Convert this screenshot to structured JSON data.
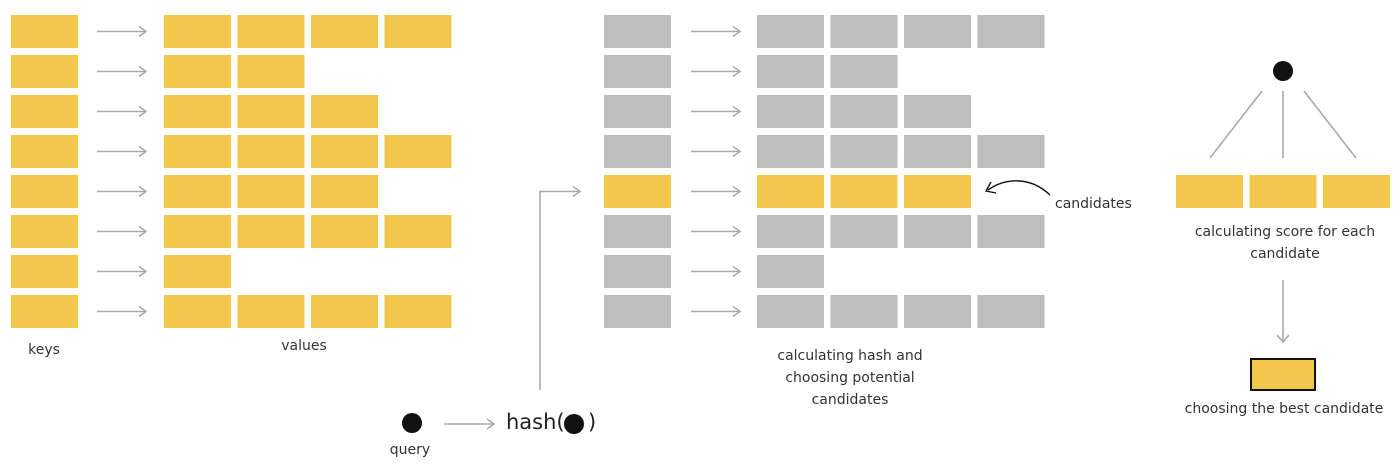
{
  "colors": {
    "yellow": "#F1C84B",
    "gray": "#BDBDBD",
    "arrow": "#AAAAAA",
    "dark": "#111111"
  },
  "left_table": {
    "keys_label": "keys",
    "values_label": "values",
    "row_value_counts": [
      4,
      2,
      3,
      4,
      3,
      4,
      1,
      4
    ]
  },
  "middle_table": {
    "row_value_counts": [
      4,
      2,
      3,
      4,
      3,
      4,
      1,
      4
    ],
    "highlighted_row": 5,
    "caption": "calculating hash and choosing potential candidates",
    "candidates_label": "candidates"
  },
  "query": {
    "label": "query",
    "hash_prefix": "hash(",
    "hash_suffix": ")"
  },
  "right_panel": {
    "candidate_count": 3,
    "score_caption": "calculating score for each candidate",
    "best_caption": "choosing the best candidate"
  },
  "icons": [
    "query-dot-icon",
    "arrow-icon",
    "curved-arrow-icon"
  ]
}
